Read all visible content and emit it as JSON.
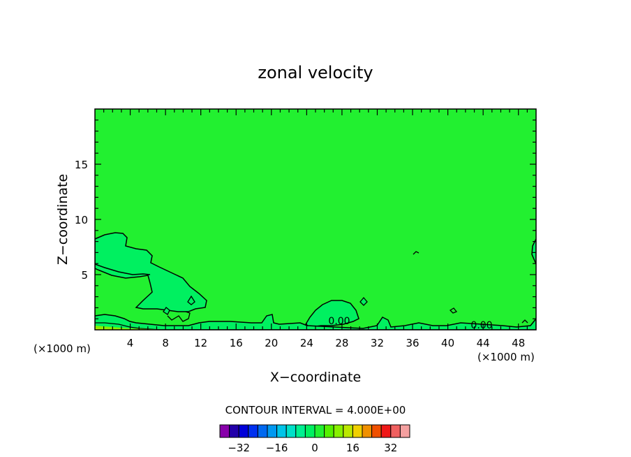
{
  "chart_data": {
    "type": "heatmap",
    "title": "zonal velocity",
    "xlabel": "X−coordinate",
    "ylabel": "Z−coordinate",
    "x_unit": "(×1000 m)",
    "y_unit": "(×1000 m)",
    "xlim": [
      0,
      50
    ],
    "ylim": [
      0,
      20
    ],
    "x_ticks": [
      4,
      8,
      12,
      16,
      20,
      24,
      28,
      32,
      36,
      40,
      44,
      48
    ],
    "x_tick_labels": [
      "4",
      "8",
      "12",
      "16",
      "20",
      "24",
      "28",
      "32",
      "36",
      "40",
      "44",
      "48"
    ],
    "y_ticks": [
      5,
      10,
      15
    ],
    "y_tick_labels": [
      "5",
      "10",
      "15"
    ],
    "contour_interval_label": "CONTOUR INTERVAL = 4.000E+00",
    "contour_interval": 4.0,
    "contour_labels": [
      "0.00",
      "0.00"
    ],
    "background_level": 0,
    "colorbar": {
      "levels": [
        -36,
        -32,
        -28,
        -24,
        -20,
        -16,
        -12,
        -8,
        -4,
        0,
        4,
        8,
        12,
        16,
        20,
        24,
        28,
        32,
        36
      ],
      "colors": [
        "#8800aa",
        "#2200aa",
        "#0000d8",
        "#0030f0",
        "#0068f0",
        "#0098f0",
        "#00c4e8",
        "#00e0c8",
        "#00f090",
        "#00f060",
        "#22f030",
        "#55f000",
        "#88f000",
        "#bbe800",
        "#f0d000",
        "#f09000",
        "#f05000",
        "#f01818",
        "#f06060",
        "#f4a0a0"
      ],
      "tick_values": [
        -32,
        -16,
        0,
        16,
        32
      ],
      "tick_labels": [
        "−32",
        "−16",
        "0",
        "16",
        "32"
      ]
    }
  }
}
